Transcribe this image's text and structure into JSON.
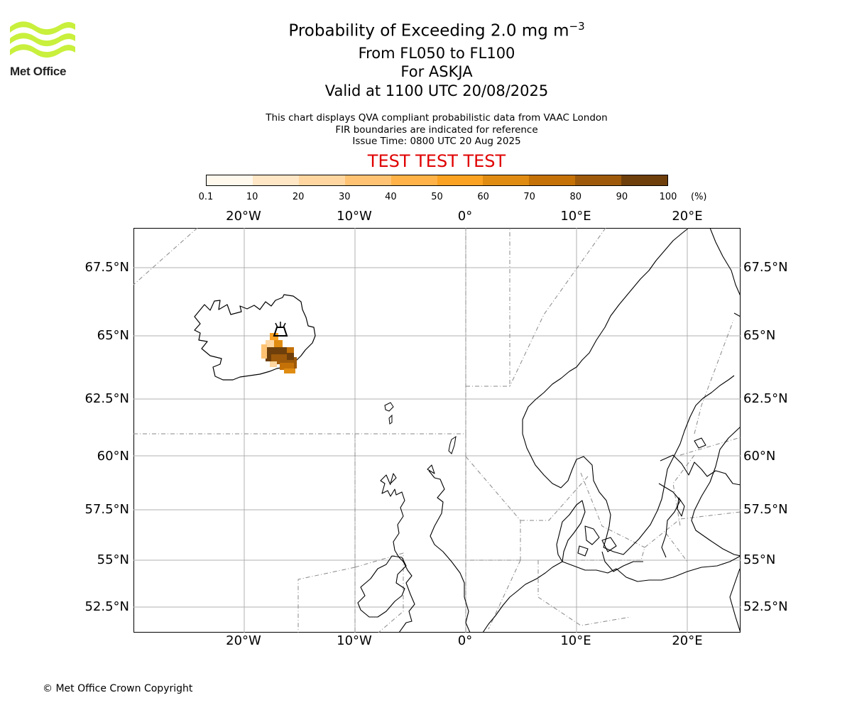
{
  "logo": {
    "text": "Met Office",
    "icon": "met-office-waves-logo"
  },
  "title": {
    "line1": "Probability of Exceeding 2.0 mg m",
    "line1_sup": "−3",
    "line2": "From FL050 to FL100",
    "line3": "For ASKJA",
    "line4": "Valid at 1100 UTC 20/08/2025"
  },
  "info": {
    "line1": "This chart displays QVA compliant probabilistic data from VAAC London",
    "line2": "FIR boundaries are indicated for reference",
    "line3": "Issue Time: 0800 UTC 20 Aug 2025"
  },
  "test_label": "TEST TEST TEST",
  "colorbar": {
    "ticks": [
      "0.1",
      "10",
      "20",
      "30",
      "40",
      "50",
      "60",
      "70",
      "80",
      "90",
      "100"
    ],
    "unit": "(%)",
    "colors": [
      "#fff8ec",
      "#ffe6c4",
      "#ffd6a0",
      "#ffc373",
      "#ffb247",
      "#fba223",
      "#e08c12",
      "#c47108",
      "#9e5a0a",
      "#6e3f0b"
    ]
  },
  "map": {
    "lon_labels": [
      "20°W",
      "10°W",
      "0°",
      "10°E",
      "20°E"
    ],
    "lat_labels": [
      "67.5°N",
      "65°N",
      "62.5°N",
      "60°N",
      "57.5°N",
      "55°N",
      "52.5°N"
    ],
    "volcano_icon": "volcano-icon"
  },
  "copyright": "© Met Office Crown Copyright"
}
